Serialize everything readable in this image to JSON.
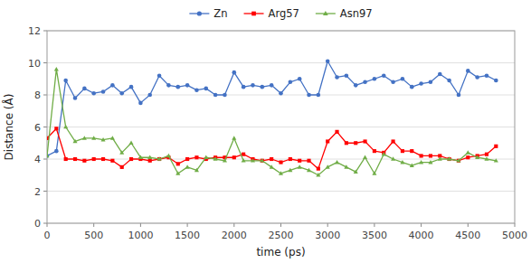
{
  "chart_data": {
    "type": "line",
    "x": [
      0,
      100,
      200,
      300,
      400,
      500,
      600,
      700,
      800,
      900,
      1000,
      1100,
      1200,
      1300,
      1400,
      1500,
      1600,
      1700,
      1800,
      1900,
      2000,
      2100,
      2200,
      2300,
      2400,
      2500,
      2600,
      2700,
      2800,
      2900,
      3000,
      3100,
      3200,
      3300,
      3400,
      3500,
      3600,
      3700,
      3800,
      3900,
      4000,
      4100,
      4200,
      4300,
      4400,
      4500,
      4600,
      4700,
      4800
    ],
    "series": [
      {
        "name": "Zn",
        "color": "#4472C4",
        "marker": "circle",
        "values": [
          4.2,
          4.5,
          8.9,
          7.8,
          8.4,
          8.1,
          8.2,
          8.6,
          8.1,
          8.5,
          7.5,
          8.0,
          9.2,
          8.6,
          8.5,
          8.6,
          8.3,
          8.4,
          8.0,
          8.0,
          9.4,
          8.5,
          8.6,
          8.5,
          8.6,
          8.1,
          8.8,
          9.0,
          8.0,
          8.0,
          10.1,
          9.1,
          9.2,
          8.6,
          8.8,
          9.0,
          9.2,
          8.8,
          9.0,
          8.5,
          8.7,
          8.8,
          9.3,
          8.9,
          8.0,
          9.5,
          9.1,
          9.2,
          8.9
        ]
      },
      {
        "name": "Arg57",
        "color": "#FF0000",
        "marker": "square",
        "values": [
          5.3,
          5.9,
          4.0,
          4.0,
          3.9,
          4.0,
          4.0,
          3.9,
          3.5,
          4.0,
          4.0,
          3.9,
          4.0,
          4.1,
          3.7,
          4.0,
          4.1,
          4.0,
          4.1,
          4.1,
          4.1,
          4.3,
          4.0,
          3.9,
          4.0,
          3.8,
          4.0,
          3.9,
          3.9,
          3.4,
          5.1,
          5.7,
          5.0,
          5.0,
          5.1,
          4.5,
          4.4,
          5.1,
          4.5,
          4.5,
          4.2,
          4.2,
          4.2,
          4.0,
          3.9,
          4.1,
          4.2,
          4.3,
          4.8
        ]
      },
      {
        "name": "Asn97",
        "color": "#70AD47",
        "marker": "triangle",
        "values": [
          4.2,
          9.6,
          6.0,
          5.1,
          5.3,
          5.3,
          5.2,
          5.3,
          4.4,
          5.0,
          4.1,
          4.1,
          4.0,
          4.2,
          3.1,
          3.5,
          3.3,
          4.1,
          4.0,
          3.9,
          5.3,
          3.9,
          3.9,
          3.9,
          3.5,
          3.1,
          3.3,
          3.5,
          3.3,
          3.0,
          3.5,
          3.8,
          3.5,
          3.2,
          4.1,
          3.1,
          4.3,
          4.0,
          3.8,
          3.6,
          3.8,
          3.8,
          4.0,
          4.0,
          3.9,
          4.4,
          4.1,
          4.0,
          3.9
        ]
      }
    ],
    "xlabel": "time (ps)",
    "ylabel": "Distance (Å)",
    "xlim": [
      0,
      5000
    ],
    "ylim": [
      0,
      12
    ],
    "xticks": [
      0,
      500,
      1000,
      1500,
      2000,
      2500,
      3000,
      3500,
      4000,
      4500,
      5000
    ],
    "yticks": [
      0,
      2,
      4,
      6,
      8,
      10,
      12
    ],
    "grid": "y",
    "legend": "top"
  }
}
